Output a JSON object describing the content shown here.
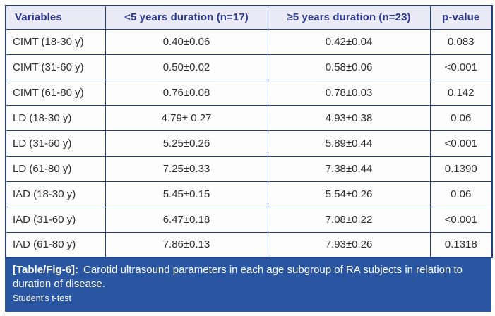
{
  "table": {
    "columns": {
      "variables": "Variables",
      "lt5": "<5 years duration (n=17)",
      "ge5": "≥5 years duration (n=23)",
      "pvalue": "p-value"
    },
    "rows": [
      {
        "variable": "CIMT (18-30 y)",
        "lt5": "0.40±0.06",
        "ge5": "0.42±0.04",
        "pvalue": "0.083"
      },
      {
        "variable": "CIMT (31-60 y)",
        "lt5": "0.50±0.02",
        "ge5": "0.58±0.06",
        "pvalue": "<0.001"
      },
      {
        "variable": "CIMT (61-80 y)",
        "lt5": "0.76±0.08",
        "ge5": "0.78±0.03",
        "pvalue": "0.142"
      },
      {
        "variable": "LD (18-30 y)",
        "lt5": "4.79± 0.27",
        "ge5": "4.93±0.38",
        "pvalue": "0.06"
      },
      {
        "variable": "LD (31-60 y)",
        "lt5": "5.25±0.26",
        "ge5": "5.89±0.44",
        "pvalue": "<0.001"
      },
      {
        "variable": "LD (61-80 y)",
        "lt5": "7.25±0.33",
        "ge5": "7.38±0.44",
        "pvalue": "0.1390"
      },
      {
        "variable": "IAD (18-30 y)",
        "lt5": "5.45±0.15",
        "ge5": "5.54±0.26",
        "pvalue": "0.06"
      },
      {
        "variable": "IAD (31-60 y)",
        "lt5": "6.47±0.18",
        "ge5": "7.08±0.22",
        "pvalue": "<0.001"
      },
      {
        "variable": "IAD (61-80 y)",
        "lt5": "7.86±0.13",
        "ge5": "7.93±0.26",
        "pvalue": "0.1318"
      }
    ]
  },
  "caption": {
    "label": "[Table/Fig-6]:",
    "text": "Carotid ultrasound parameters in each age subgroup of RA subjects in relation to duration of disease.",
    "note": "Student's t-test"
  },
  "colors": {
    "header_bg": "#e9eaf5",
    "header_text": "#2b3990",
    "grid_border": "#24407c",
    "cell_text": "#2e2c2a",
    "caption_bg": "#2a55a0",
    "caption_text": "#ffffff"
  },
  "chart_data": {
    "type": "table",
    "title": "[Table/Fig-6]: Carotid ultrasound parameters in each age subgroup of RA subjects in relation to duration of disease.",
    "columns": [
      "Variables",
      "<5 years duration (n=17)",
      "≥5 years duration (n=23)",
      "p-value"
    ],
    "rows": [
      [
        "CIMT (18-30 y)",
        "0.40±0.06",
        "0.42±0.04",
        "0.083"
      ],
      [
        "CIMT (31-60 y)",
        "0.50±0.02",
        "0.58±0.06",
        "<0.001"
      ],
      [
        "CIMT (61-80 y)",
        "0.76±0.08",
        "0.78±0.03",
        "0.142"
      ],
      [
        "LD (18-30 y)",
        "4.79± 0.27",
        "4.93±0.38",
        "0.06"
      ],
      [
        "LD (31-60 y)",
        "5.25±0.26",
        "5.89±0.44",
        "<0.001"
      ],
      [
        "LD (61-80 y)",
        "7.25±0.33",
        "7.38±0.44",
        "0.1390"
      ],
      [
        "IAD (18-30 y)",
        "5.45±0.15",
        "5.54±0.26",
        "0.06"
      ],
      [
        "IAD (31-60 y)",
        "6.47±0.18",
        "7.08±0.22",
        "<0.001"
      ],
      [
        "IAD (61-80 y)",
        "7.86±0.13",
        "7.93±0.26",
        "0.1318"
      ]
    ],
    "footnote": "Student's t-test"
  }
}
